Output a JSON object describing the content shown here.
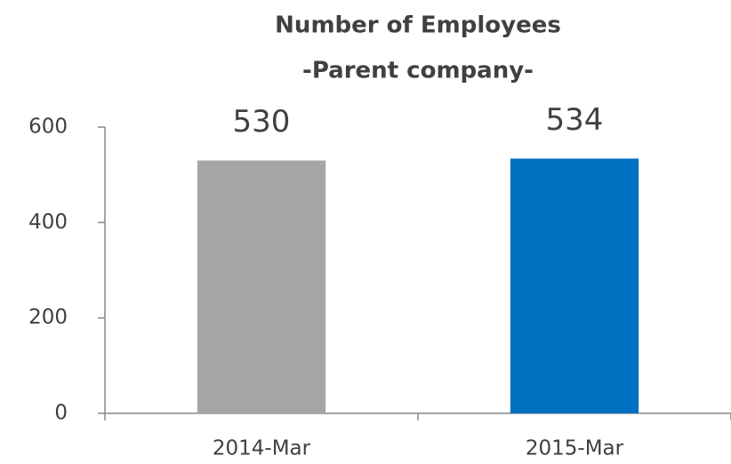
{
  "chart_data": {
    "type": "bar",
    "title": "Number of Employees",
    "subtitle": "-Parent company-",
    "categories": [
      "2014-Mar",
      "2015-Mar"
    ],
    "values": [
      530,
      534
    ],
    "colors": [
      "#a6a6a6",
      "#0070c0"
    ],
    "ylim": [
      0,
      600
    ],
    "yticks": [
      0,
      200,
      400,
      600
    ],
    "grid": false
  }
}
